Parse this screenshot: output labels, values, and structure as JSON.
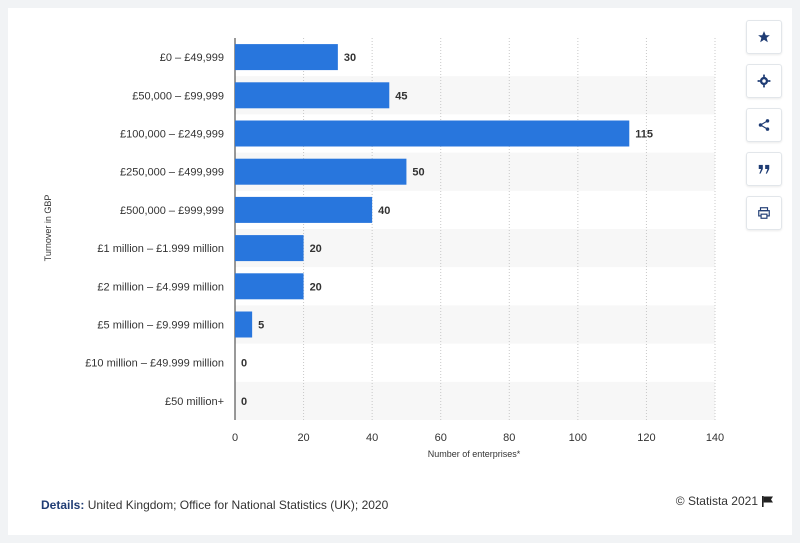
{
  "chart_data": {
    "type": "bar",
    "orientation": "horizontal",
    "categories": [
      "£0 – £49,999",
      "£50,000 – £99,999",
      "£100,000 – £249,999",
      "£250,000 – £499,999",
      "£500,000 – £999,999",
      "£1 million – £1.999 million",
      "£2 million – £4.999 million",
      "£5 million – £9.999 million",
      "£10 million – £49.999 million",
      "£50 million+"
    ],
    "values": [
      30,
      45,
      115,
      50,
      40,
      20,
      20,
      5,
      0,
      0
    ],
    "xlabel": "Number of enterprises*",
    "ylabel": "Turnover in GBP",
    "xlim": [
      0,
      140
    ],
    "xticks": [
      "0",
      "20",
      "40",
      "60",
      "80",
      "100",
      "120",
      "140"
    ],
    "grid": true,
    "bar_color": "#2876dd"
  },
  "footer": {
    "details_key": "Details:",
    "details_text": "United Kingdom; Office for National Statistics (UK); 2020",
    "credit": "© Statista 2021"
  },
  "sidebar": {
    "buttons": [
      "star-icon",
      "gear-icon",
      "share-icon",
      "quote-icon",
      "print-icon"
    ]
  }
}
